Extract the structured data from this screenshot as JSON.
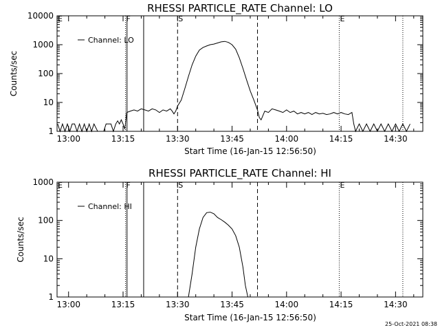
{
  "colors": {
    "background": "#ffffff",
    "foreground": "#000000"
  },
  "footer": {
    "timestamp": "25-Oct-2021 08:38"
  },
  "chart_data": [
    {
      "type": "line",
      "title": "RHESSI PARTICLE_RATE Channel: LO",
      "xlabel": "Start Time (16-Jan-15 12:56:50)",
      "ylabel": "Counts/sec",
      "y_scale": "log",
      "ylim": [
        1,
        10000
      ],
      "xlim": [
        "12:56:50",
        "14:37:30"
      ],
      "x_ticks": [
        "13:00",
        "13:15",
        "13:30",
        "13:45",
        "14:00",
        "14:15",
        "14:30"
      ],
      "y_ticks": [
        "1",
        "10",
        "100",
        "1000",
        "10000"
      ],
      "legend": {
        "placement": "top-left",
        "entries": [
          "Channel: LO"
        ]
      },
      "markers": [
        {
          "label": "E",
          "time": "12:56:50",
          "style": "dotted"
        },
        {
          "label": "F",
          "time": "13:15:40",
          "style": "dotted"
        },
        {
          "label": "",
          "time": "13:16:05",
          "style": "solid"
        },
        {
          "label": "",
          "time": "13:20:40",
          "style": "solid"
        },
        {
          "label": "S",
          "time": "13:30:00",
          "style": "dashed"
        },
        {
          "label": "",
          "time": "13:52:00",
          "style": "dashed"
        },
        {
          "label": "E",
          "time": "14:14:30",
          "style": "dotted"
        },
        {
          "label": "",
          "time": "14:32:00",
          "style": "dotted"
        }
      ],
      "series": [
        {
          "name": "Channel: LO",
          "x": [
            "12:57:00",
            "12:57:40",
            "12:58:20",
            "12:59:00",
            "12:59:40",
            "13:00:20",
            "13:01:00",
            "13:01:40",
            "13:02:20",
            "13:03:00",
            "13:03:40",
            "13:04:20",
            "13:05:00",
            "13:05:40",
            "13:06:20",
            "13:07:00",
            "13:08:00",
            "13:09:00",
            "13:09:40",
            "13:10:20",
            "13:11:00",
            "13:11:40",
            "13:12:20",
            "13:13:00",
            "13:13:30",
            "13:14:00",
            "13:14:30",
            "13:15:00",
            "13:15:30",
            "13:16:00",
            "13:17:00",
            "13:18:00",
            "13:19:00",
            "13:20:00",
            "13:21:00",
            "13:22:00",
            "13:23:00",
            "13:24:00",
            "13:25:00",
            "13:26:00",
            "13:27:00",
            "13:28:00",
            "13:28:30",
            "13:29:00",
            "13:29:30",
            "13:30:00",
            "13:31:00",
            "13:32:00",
            "13:33:00",
            "13:34:00",
            "13:35:00",
            "13:36:00",
            "13:37:00",
            "13:38:00",
            "13:39:00",
            "13:40:00",
            "13:41:00",
            "13:42:00",
            "13:43:00",
            "13:44:00",
            "13:45:00",
            "13:46:00",
            "13:47:00",
            "13:48:00",
            "13:49:00",
            "13:50:00",
            "13:51:00",
            "13:52:00",
            "13:52:30",
            "13:53:00",
            "13:54:00",
            "13:55:00",
            "13:56:00",
            "13:57:00",
            "13:58:00",
            "13:59:00",
            "14:00:00",
            "14:01:00",
            "14:02:00",
            "14:03:00",
            "14:04:00",
            "14:05:00",
            "14:06:00",
            "14:07:00",
            "14:08:00",
            "14:09:00",
            "14:10:00",
            "14:11:00",
            "14:12:00",
            "14:13:00",
            "14:14:00",
            "14:15:00",
            "14:16:00",
            "14:17:00",
            "14:18:00",
            "14:18:30",
            "14:19:00",
            "14:20:00",
            "14:21:00",
            "14:22:00",
            "14:23:00",
            "14:24:00",
            "14:25:00",
            "14:26:00",
            "14:27:00",
            "14:28:00",
            "14:29:00",
            "14:30:00",
            "14:31:00",
            "14:32:00",
            "14:33:00",
            "14:34:00"
          ],
          "y": [
            1.8,
            1,
            1.8,
            1,
            1.8,
            1,
            1.8,
            1.8,
            1,
            1.8,
            1,
            1.8,
            1,
            1.8,
            1,
            1.8,
            1,
            1,
            1,
            1.8,
            1.8,
            1.8,
            1,
            1.8,
            2.3,
            1.8,
            2.5,
            1.8,
            1.2,
            4.5,
            5,
            5.5,
            5,
            6,
            5.5,
            5,
            6,
            5.5,
            4.5,
            5.5,
            5,
            6,
            5,
            4,
            5,
            7.5,
            12,
            30,
            80,
            200,
            400,
            650,
            800,
            900,
            1000,
            1050,
            1150,
            1250,
            1300,
            1200,
            1000,
            700,
            350,
            150,
            60,
            25,
            12,
            5.5,
            3,
            2.5,
            5,
            4.5,
            6,
            5.5,
            5,
            4.5,
            5.5,
            4.5,
            5,
            4,
            4.5,
            4,
            4.5,
            3.8,
            4.5,
            4,
            4.2,
            3.8,
            4,
            4.5,
            4,
            4.5,
            4,
            3.8,
            4.5,
            1.8,
            1,
            1.8,
            1,
            1.8,
            1,
            1.8,
            1,
            1.8,
            1,
            1.8,
            1,
            1.8,
            1,
            1.8,
            1,
            1.8
          ]
        }
      ]
    },
    {
      "type": "line",
      "title": "RHESSI PARTICLE_RATE Channel: HI",
      "xlabel": "Start Time (16-Jan-15 12:56:50)",
      "ylabel": "Counts/sec",
      "y_scale": "log",
      "ylim": [
        1,
        1000
      ],
      "xlim": [
        "12:56:50",
        "14:37:30"
      ],
      "x_ticks": [
        "13:00",
        "13:15",
        "13:30",
        "13:45",
        "14:00",
        "14:15",
        "14:30"
      ],
      "y_ticks": [
        "1",
        "10",
        "100",
        "1000"
      ],
      "legend": {
        "placement": "top-left",
        "entries": [
          "Channel: HI"
        ]
      },
      "markers": [
        {
          "label": "E",
          "time": "12:56:50",
          "style": "dotted"
        },
        {
          "label": "F",
          "time": "13:15:40",
          "style": "dotted"
        },
        {
          "label": "",
          "time": "13:16:05",
          "style": "solid"
        },
        {
          "label": "",
          "time": "13:20:40",
          "style": "solid"
        },
        {
          "label": "S",
          "time": "13:30:00",
          "style": "dashed"
        },
        {
          "label": "",
          "time": "13:52:00",
          "style": "dashed"
        },
        {
          "label": "E",
          "time": "14:14:30",
          "style": "dotted"
        },
        {
          "label": "",
          "time": "14:32:00",
          "style": "dotted"
        }
      ],
      "series": [
        {
          "name": "Channel: HI",
          "x": [
            "13:33:00",
            "13:34:00",
            "13:35:00",
            "13:36:00",
            "13:37:00",
            "13:38:00",
            "13:39:00",
            "13:40:00",
            "13:41:00",
            "13:42:00",
            "13:43:00",
            "13:44:00",
            "13:45:00",
            "13:46:00",
            "13:47:00",
            "13:48:00",
            "13:48:40",
            "13:49:20"
          ],
          "y": [
            1,
            4,
            20,
            60,
            120,
            160,
            165,
            150,
            120,
            105,
            90,
            75,
            60,
            40,
            20,
            6,
            2,
            1
          ]
        }
      ]
    }
  ]
}
